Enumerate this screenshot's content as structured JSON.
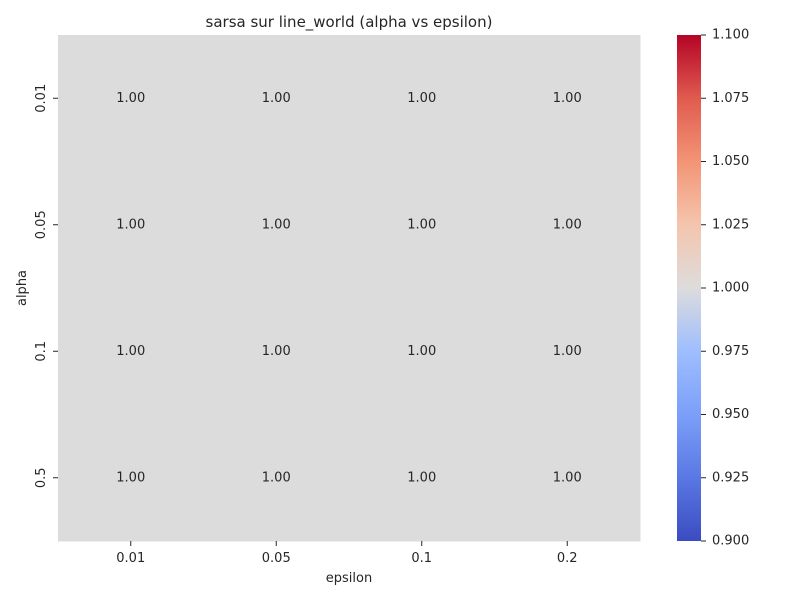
{
  "chart_data": {
    "type": "heatmap",
    "title": "sarsa sur line_world (alpha vs epsilon)",
    "xlabel": "epsilon",
    "ylabel": "alpha",
    "x_categories": [
      "0.01",
      "0.05",
      "0.1",
      "0.2"
    ],
    "y_categories": [
      "0.01",
      "0.05",
      "0.1",
      "0.5"
    ],
    "values": [
      [
        1.0,
        1.0,
        1.0,
        1.0
      ],
      [
        1.0,
        1.0,
        1.0,
        1.0
      ],
      [
        1.0,
        1.0,
        1.0,
        1.0
      ],
      [
        1.0,
        1.0,
        1.0,
        1.0
      ]
    ],
    "annotation_format": "2f",
    "colormap": "coolwarm",
    "colorbar": {
      "vmin": 0.9,
      "vmax": 1.1,
      "ticks": [
        "0.900",
        "0.925",
        "0.950",
        "0.975",
        "1.000",
        "1.025",
        "1.050",
        "1.075",
        "1.100"
      ]
    },
    "cell_color": "#dddcdc"
  }
}
